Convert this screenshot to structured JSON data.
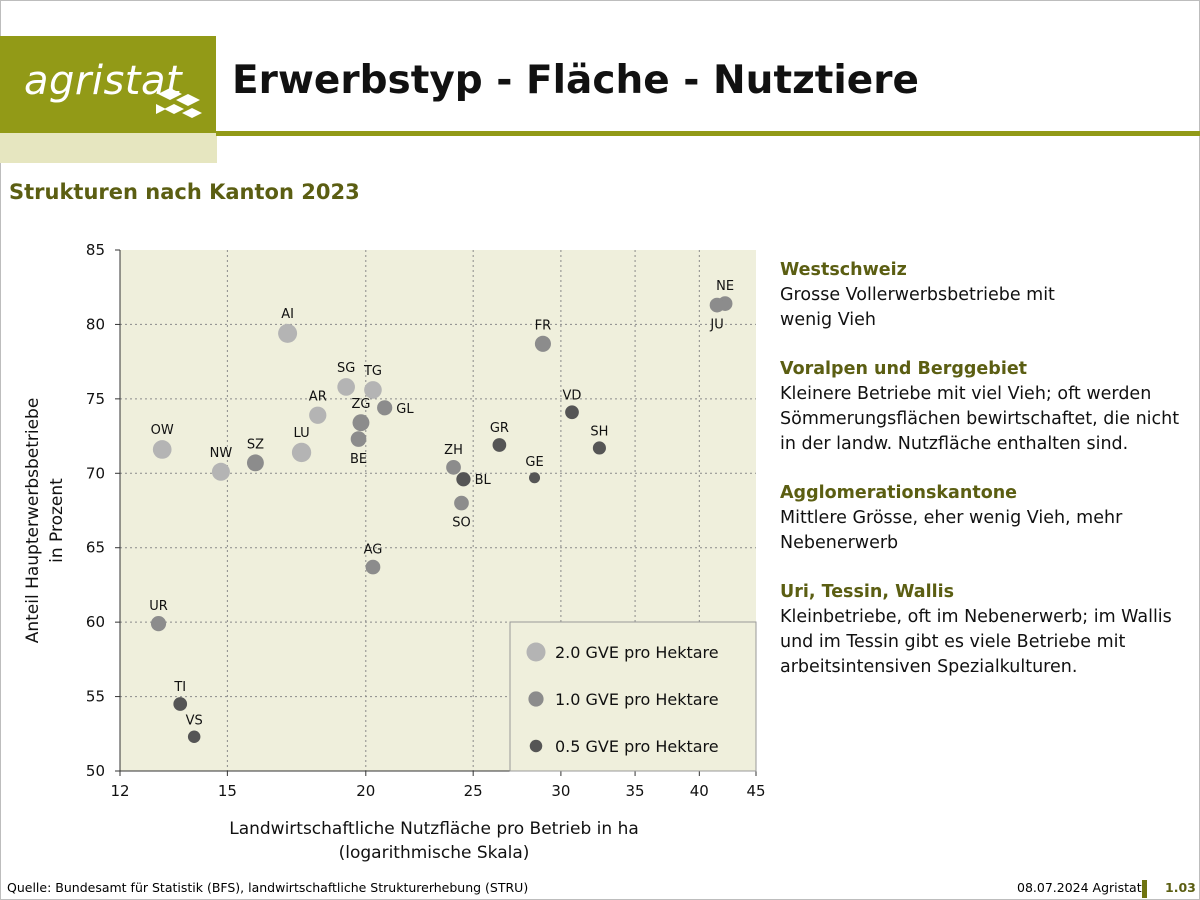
{
  "header": {
    "logo_text": "agristat",
    "title": "Erwerbstyp - Fläche - Nutztiere",
    "subtitle": "Strukturen nach Kanton 2023"
  },
  "colors": {
    "brand": "#929a17",
    "brand_dark": "#5b5e12",
    "plot_bg": "#efefdc",
    "point_large": "#b4b4b4",
    "point_medium": "#8c8c8c",
    "point_small": "#555555"
  },
  "chart_data": {
    "type": "scatter",
    "xlabel": "Landwirtschaftliche Nutzfläche pro Betrieb in ha",
    "xlabel_note": "(logarithmische Skala)",
    "ylabel": "Anteil Haupterwerbsbetriebe",
    "ylabel_note": "in Prozent",
    "x_scale": "log",
    "xlim": [
      12,
      45
    ],
    "ylim": [
      50,
      85
    ],
    "x_ticks": [
      12,
      15,
      20,
      25,
      30,
      35,
      40,
      45
    ],
    "y_ticks": [
      50,
      55,
      60,
      65,
      70,
      75,
      80,
      85
    ],
    "grid": true,
    "points": [
      {
        "label": "AI",
        "x": 17.0,
        "y": 79.4,
        "gve": 2.0,
        "label_pos": "above"
      },
      {
        "label": "FR",
        "x": 28.9,
        "y": 78.7,
        "gve": 1.2,
        "label_pos": "above"
      },
      {
        "label": "NE",
        "x": 42.2,
        "y": 81.4,
        "gve": 0.9,
        "label_pos": "above"
      },
      {
        "label": "JU",
        "x": 41.5,
        "y": 81.3,
        "gve": 0.9,
        "label_pos": "below"
      },
      {
        "label": "SG",
        "x": 19.2,
        "y": 75.8,
        "gve": 1.6,
        "label_pos": "above"
      },
      {
        "label": "TG",
        "x": 20.3,
        "y": 75.6,
        "gve": 1.6,
        "label_pos": "above"
      },
      {
        "label": "GL",
        "x": 20.8,
        "y": 74.4,
        "gve": 1.0,
        "label_pos": "right"
      },
      {
        "label": "ZG",
        "x": 19.8,
        "y": 73.4,
        "gve": 1.4,
        "label_pos": "above"
      },
      {
        "label": "AR",
        "x": 18.1,
        "y": 73.9,
        "gve": 1.5,
        "label_pos": "above"
      },
      {
        "label": "BE",
        "x": 19.7,
        "y": 72.3,
        "gve": 1.1,
        "label_pos": "below"
      },
      {
        "label": "VD",
        "x": 30.7,
        "y": 74.1,
        "gve": 0.7,
        "label_pos": "above"
      },
      {
        "label": "SH",
        "x": 32.5,
        "y": 71.7,
        "gve": 0.6,
        "label_pos": "above"
      },
      {
        "label": "GR",
        "x": 26.4,
        "y": 71.9,
        "gve": 0.7,
        "label_pos": "above"
      },
      {
        "label": "GE",
        "x": 28.4,
        "y": 69.7,
        "gve": 0.3,
        "label_pos": "above"
      },
      {
        "label": "ZH",
        "x": 24.0,
        "y": 70.4,
        "gve": 0.9,
        "label_pos": "above"
      },
      {
        "label": "BL",
        "x": 24.5,
        "y": 69.6,
        "gve": 0.8,
        "label_pos": "right"
      },
      {
        "label": "SO",
        "x": 24.4,
        "y": 68.0,
        "gve": 0.9,
        "label_pos": "below"
      },
      {
        "label": "LU",
        "x": 17.5,
        "y": 71.4,
        "gve": 2.1,
        "label_pos": "above"
      },
      {
        "label": "OW",
        "x": 13.1,
        "y": 71.6,
        "gve": 1.9,
        "label_pos": "above"
      },
      {
        "label": "NW",
        "x": 14.8,
        "y": 70.1,
        "gve": 1.7,
        "label_pos": "above"
      },
      {
        "label": "SZ",
        "x": 15.9,
        "y": 70.7,
        "gve": 1.4,
        "label_pos": "above"
      },
      {
        "label": "AG",
        "x": 20.3,
        "y": 63.7,
        "gve": 0.9,
        "label_pos": "above"
      },
      {
        "label": "UR",
        "x": 13.0,
        "y": 59.9,
        "gve": 1.0,
        "label_pos": "above"
      },
      {
        "label": "TI",
        "x": 13.6,
        "y": 54.5,
        "gve": 0.7,
        "label_pos": "above"
      },
      {
        "label": "VS",
        "x": 14.0,
        "y": 52.3,
        "gve": 0.5,
        "label_pos": "above"
      }
    ],
    "legend": {
      "placement": "bottom-right",
      "items": [
        {
          "label": "2.0 GVE pro Hektare",
          "gve": 2.0
        },
        {
          "label": "1.0 GVE pro Hektare",
          "gve": 1.0
        },
        {
          "label": "0.5 GVE pro Hektare",
          "gve": 0.5
        }
      ]
    }
  },
  "sidebar": {
    "sections": [
      {
        "title": "Westschweiz",
        "text": "Grosse Vollerwerbsbetriebe mit wenig Vieh"
      },
      {
        "title": "Voralpen und Berggebiet",
        "text": "Kleinere Betriebe mit viel Vieh; oft werden Sömmerungsflächen bewirtschaftet, die nicht in der landw. Nutzfläche enthalten sind."
      },
      {
        "title": "Agglomerationskantone",
        "text": "Mittlere Grösse, eher wenig Vieh, mehr Nebenerwerb"
      },
      {
        "title": "Uri, Tessin, Wallis",
        "text": "Kleinbetriebe, oft im Nebenerwerb; im Wallis und im Tessin gibt es viele Betriebe mit arbeitsintensiven Spezialkulturen."
      }
    ]
  },
  "footer": {
    "source": "Quelle: Bundesamt für Statistik (BFS), landwirtschaftliche Strukturerhebung (STRU)",
    "date": "08.07.2024 Agristat",
    "page": "1.03"
  }
}
